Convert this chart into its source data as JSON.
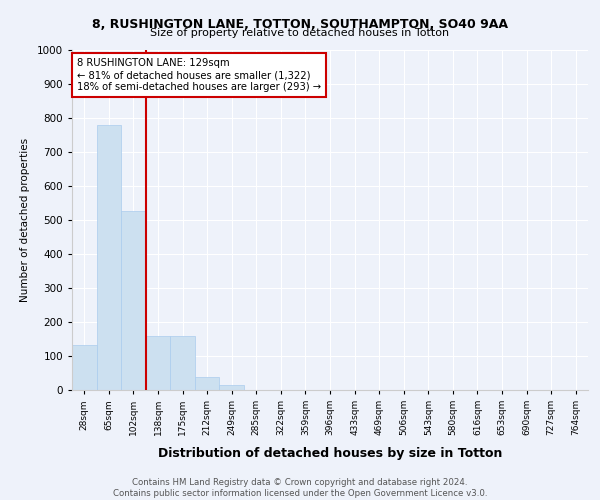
{
  "title1": "8, RUSHINGTON LANE, TOTTON, SOUTHAMPTON, SO40 9AA",
  "title2": "Size of property relative to detached houses in Totton",
  "xlabel": "Distribution of detached houses by size in Totton",
  "ylabel": "Number of detached properties",
  "footer": "Contains HM Land Registry data © Crown copyright and database right 2024.\nContains public sector information licensed under the Open Government Licence v3.0.",
  "bin_labels": [
    "28sqm",
    "65sqm",
    "102sqm",
    "138sqm",
    "175sqm",
    "212sqm",
    "249sqm",
    "285sqm",
    "322sqm",
    "359sqm",
    "396sqm",
    "433sqm",
    "469sqm",
    "506sqm",
    "543sqm",
    "580sqm",
    "616sqm",
    "653sqm",
    "690sqm",
    "727sqm",
    "764sqm"
  ],
  "bar_values": [
    133,
    778,
    527,
    160,
    158,
    37,
    14,
    0,
    0,
    0,
    0,
    0,
    0,
    0,
    0,
    0,
    0,
    0,
    0,
    0,
    0
  ],
  "bar_color": "#cce0f0",
  "bar_edge_color": "#aaccee",
  "property_line_x": 2.5,
  "annotation_line0": "8 RUSHINGTON LANE: 129sqm",
  "annotation_line1": "← 81% of detached houses are smaller (1,322)",
  "annotation_line2": "18% of semi-detached houses are larger (293) →",
  "annotation_box_color": "#ffffff",
  "annotation_box_edge": "#cc0000",
  "vline_color": "#cc0000",
  "ylim": [
    0,
    1000
  ],
  "yticks": [
    0,
    100,
    200,
    300,
    400,
    500,
    600,
    700,
    800,
    900,
    1000
  ],
  "bg_color": "#eef2fa",
  "grid_color": "#ffffff"
}
